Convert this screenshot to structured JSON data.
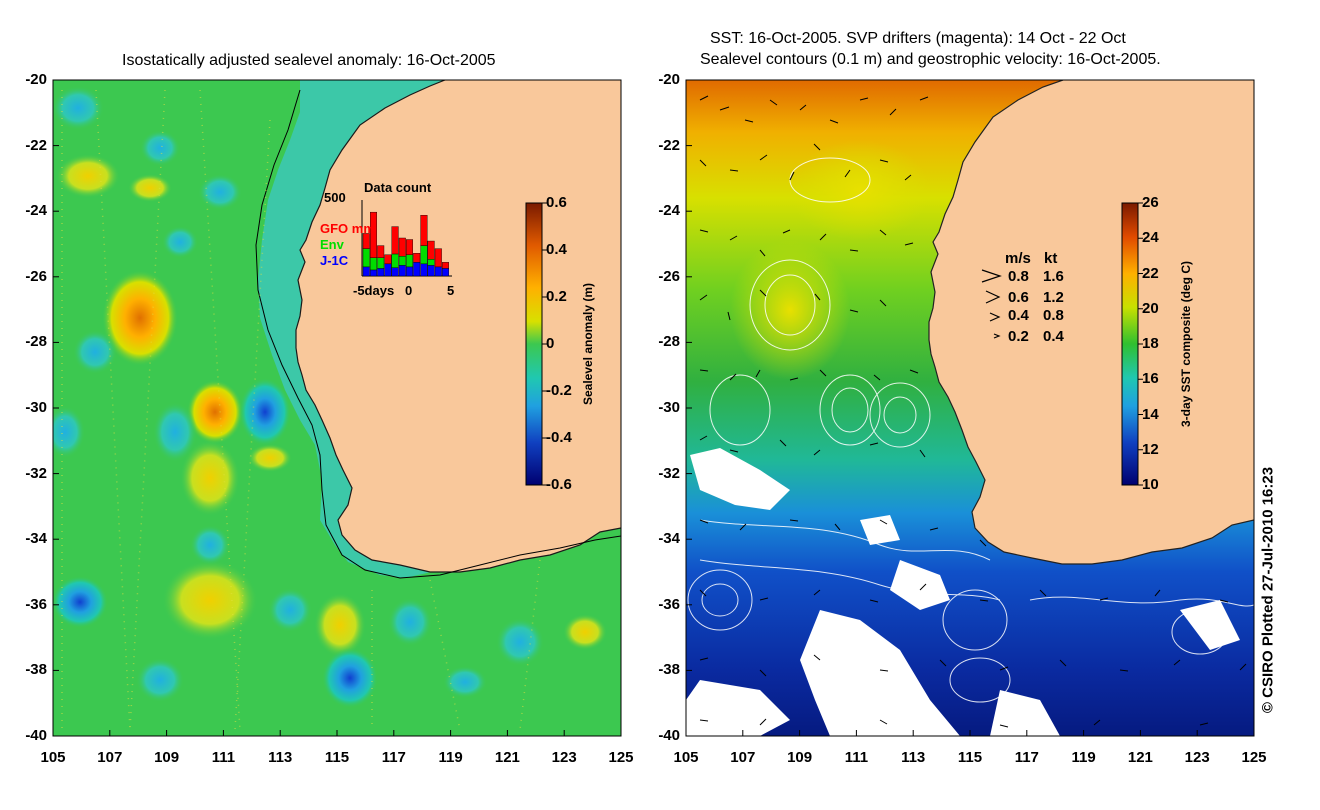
{
  "left_panel": {
    "title": "Isostatically adjusted sealevel anomaly: 16-Oct-2005",
    "lat_ticks": [
      "-20",
      "-22",
      "-24",
      "-26",
      "-28",
      "-30",
      "-32",
      "-34",
      "-36",
      "-38",
      "-40"
    ],
    "lon_ticks": [
      "105",
      "107",
      "109",
      "111",
      "113",
      "115",
      "117",
      "119",
      "121",
      "123",
      "125"
    ],
    "colorbar": {
      "label": "Sealevel anomaly (m)",
      "ticks": [
        "0.6",
        "0.4",
        "0.2",
        "0",
        "-0.2",
        "-0.4",
        "-0.6"
      ],
      "range": [
        -0.6,
        0.6
      ]
    },
    "inset": {
      "title": "Data count",
      "ymax_label": "500",
      "x_labels": [
        "-5days",
        "0",
        "5"
      ],
      "legend": [
        {
          "name": "GFO mm",
          "color": "#ff0000"
        },
        {
          "name": "Env",
          "color": "#00dd00"
        },
        {
          "name": "J-1C",
          "color": "#0000ff"
        }
      ]
    }
  },
  "right_panel": {
    "title_line1": "SST: 16-Oct-2005. SVP drifters (magenta): 14 Oct - 22 Oct",
    "title_line2": "Sealevel contours (0.1 m) and geostrophic velocity: 16-Oct-2005.",
    "lat_ticks": [
      "-20",
      "-22",
      "-24",
      "-26",
      "-28",
      "-30",
      "-32",
      "-34",
      "-36",
      "-38",
      "-40"
    ],
    "lon_ticks": [
      "105",
      "107",
      "109",
      "111",
      "113",
      "115",
      "117",
      "119",
      "121",
      "123",
      "125"
    ],
    "colorbar": {
      "label": "3-day SST composite (deg C)",
      "ticks": [
        "26",
        "24",
        "22",
        "20",
        "18",
        "16",
        "14",
        "12",
        "10"
      ],
      "range": [
        10,
        26
      ]
    },
    "speed_legend": {
      "header_ms": "m/s",
      "header_kt": "kt",
      "rows": [
        {
          "ms": "0.8",
          "kt": "1.6"
        },
        {
          "ms": "0.6",
          "kt": "1.2"
        },
        {
          "ms": "0.4",
          "kt": "0.8"
        },
        {
          "ms": "0.2",
          "kt": "0.4"
        }
      ]
    }
  },
  "copyright": "© CSIRO Plotted 27-Jul-2010 16:23",
  "colors": {
    "land": "#f9c89b",
    "shelf": "#3cc8a8",
    "ssh_background": "#3cc850"
  },
  "chart_data": {
    "type": "bar",
    "title": "Data count",
    "categories": [
      "-6",
      "-5",
      "-4",
      "-3",
      "-2",
      "-1",
      "0",
      "1",
      "2",
      "3",
      "4",
      "5"
    ],
    "ylim": [
      0,
      500
    ],
    "series": [
      {
        "name": "J-1C",
        "values": [
          60,
          40,
          50,
          80,
          55,
          70,
          60,
          90,
          80,
          70,
          60,
          50
        ]
      },
      {
        "name": "Env",
        "values": [
          120,
          80,
          70,
          0,
          90,
          60,
          80,
          0,
          120,
          40,
          0,
          0
        ]
      },
      {
        "name": "GFO mm",
        "values": [
          100,
          300,
          80,
          60,
          180,
          120,
          100,
          60,
          200,
          120,
          120,
          40
        ]
      }
    ]
  }
}
